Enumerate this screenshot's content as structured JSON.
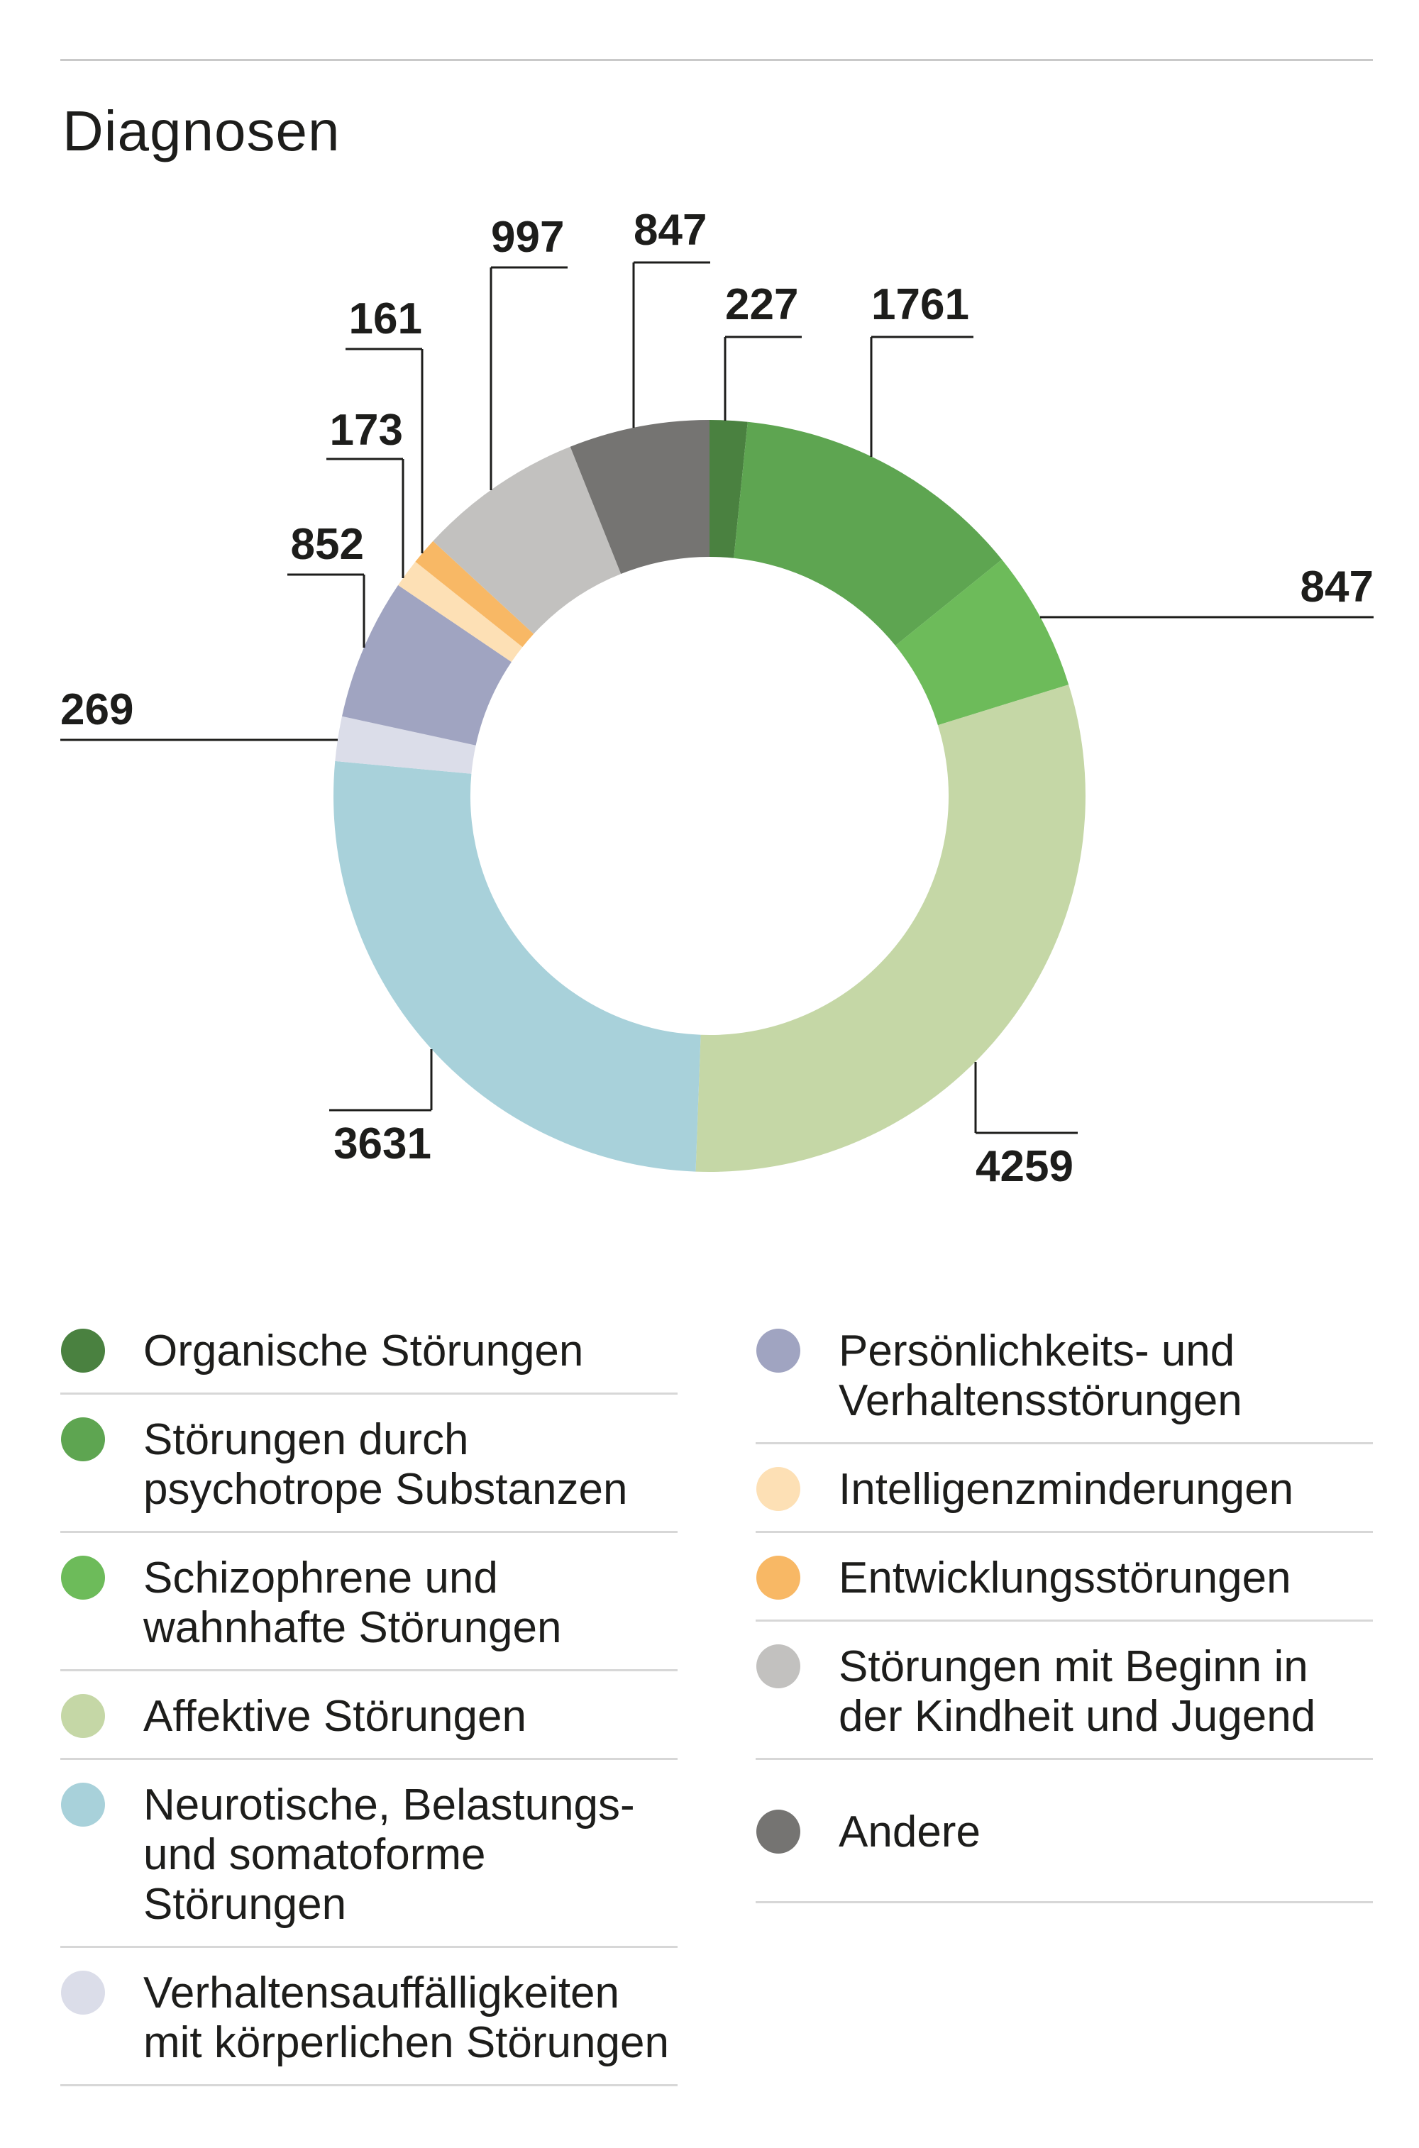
{
  "page": {
    "title": "Diagnosen",
    "background": "#ffffff",
    "text_color": "#1d1d1b",
    "rule_color": "#c9c9c9",
    "separator_color": "#d7d7d7"
  },
  "chart_data": {
    "type": "pie",
    "variant": "donut",
    "title": "Diagnosen",
    "total": 14024,
    "start_angle_deg": 0,
    "direction": "clockwise",
    "legend_position": "below, two columns",
    "segments": [
      {
        "label": "Organische Störungen",
        "value": 227,
        "color": "#4a8140"
      },
      {
        "label": "Störungen durch psychotrope Substanzen",
        "value": 1761,
        "color": "#5ea551"
      },
      {
        "label": "Schizophrene und wahnhafte Störungen",
        "value": 847,
        "color": "#6dbb5a"
      },
      {
        "label": "Affektive Störungen",
        "value": 4259,
        "color": "#c5d7a6"
      },
      {
        "label": "Neurotische, Belastungs- und somatoforme Störungen",
        "value": 3631,
        "color": "#a8d1da"
      },
      {
        "label": "Verhaltensauffälligkeiten mit körperlichen Störungen",
        "value": 269,
        "color": "#dbdde9"
      },
      {
        "label": "Persönlichkeits- und Verhaltensstörungen",
        "value": 852,
        "color": "#a0a4c1"
      },
      {
        "label": "Intelligenzminderungen",
        "value": 173,
        "color": "#fde0b5"
      },
      {
        "label": "Entwicklungsstörungen",
        "value": 161,
        "color": "#f8b865"
      },
      {
        "label": "Störungen mit Beginn in der Kindheit und Jugend",
        "value": 997,
        "color": "#c2c1bf"
      },
      {
        "label": "Andere",
        "value": 847,
        "color": "#757472"
      }
    ]
  },
  "legend": {
    "columns": [
      {
        "items": [
          {
            "segment": 0,
            "color": "#4a8140",
            "lines": [
              "Organische Störungen"
            ]
          },
          {
            "segment": 1,
            "color": "#5ea551",
            "lines": [
              "Störungen durch",
              "psychotrope Substanzen"
            ]
          },
          {
            "segment": 2,
            "color": "#6dbb5a",
            "lines": [
              "Schizophrene und",
              "wahnhafte Störungen"
            ]
          },
          {
            "segment": 3,
            "color": "#c5d7a6",
            "lines": [
              "Affektive Störungen"
            ]
          },
          {
            "segment": 4,
            "color": "#a8d1da",
            "lines": [
              "Neurotische, Belastungs-",
              "und somatoforme",
              "Störungen"
            ]
          },
          {
            "segment": 5,
            "color": "#dbdde9",
            "lines": [
              "Verhaltensauffälligkeiten",
              "mit körperlichen Störungen"
            ]
          }
        ]
      },
      {
        "items": [
          {
            "segment": 6,
            "color": "#a0a4c1",
            "lines": [
              "Persönlichkeits- und",
              "Verhaltensstörungen"
            ]
          },
          {
            "segment": 7,
            "color": "#fde0b5",
            "lines": [
              "Intelligenzminderungen"
            ]
          },
          {
            "segment": 8,
            "color": "#f8b865",
            "lines": [
              "Entwicklungsstörungen"
            ]
          },
          {
            "segment": 9,
            "color": "#c2c1bf",
            "lines": [
              "Störungen mit Beginn in",
              "der Kindheit und Jugend"
            ]
          },
          {
            "segment": 10,
            "color": "#757472",
            "lines": [
              "Andere"
            ]
          }
        ]
      }
    ]
  }
}
